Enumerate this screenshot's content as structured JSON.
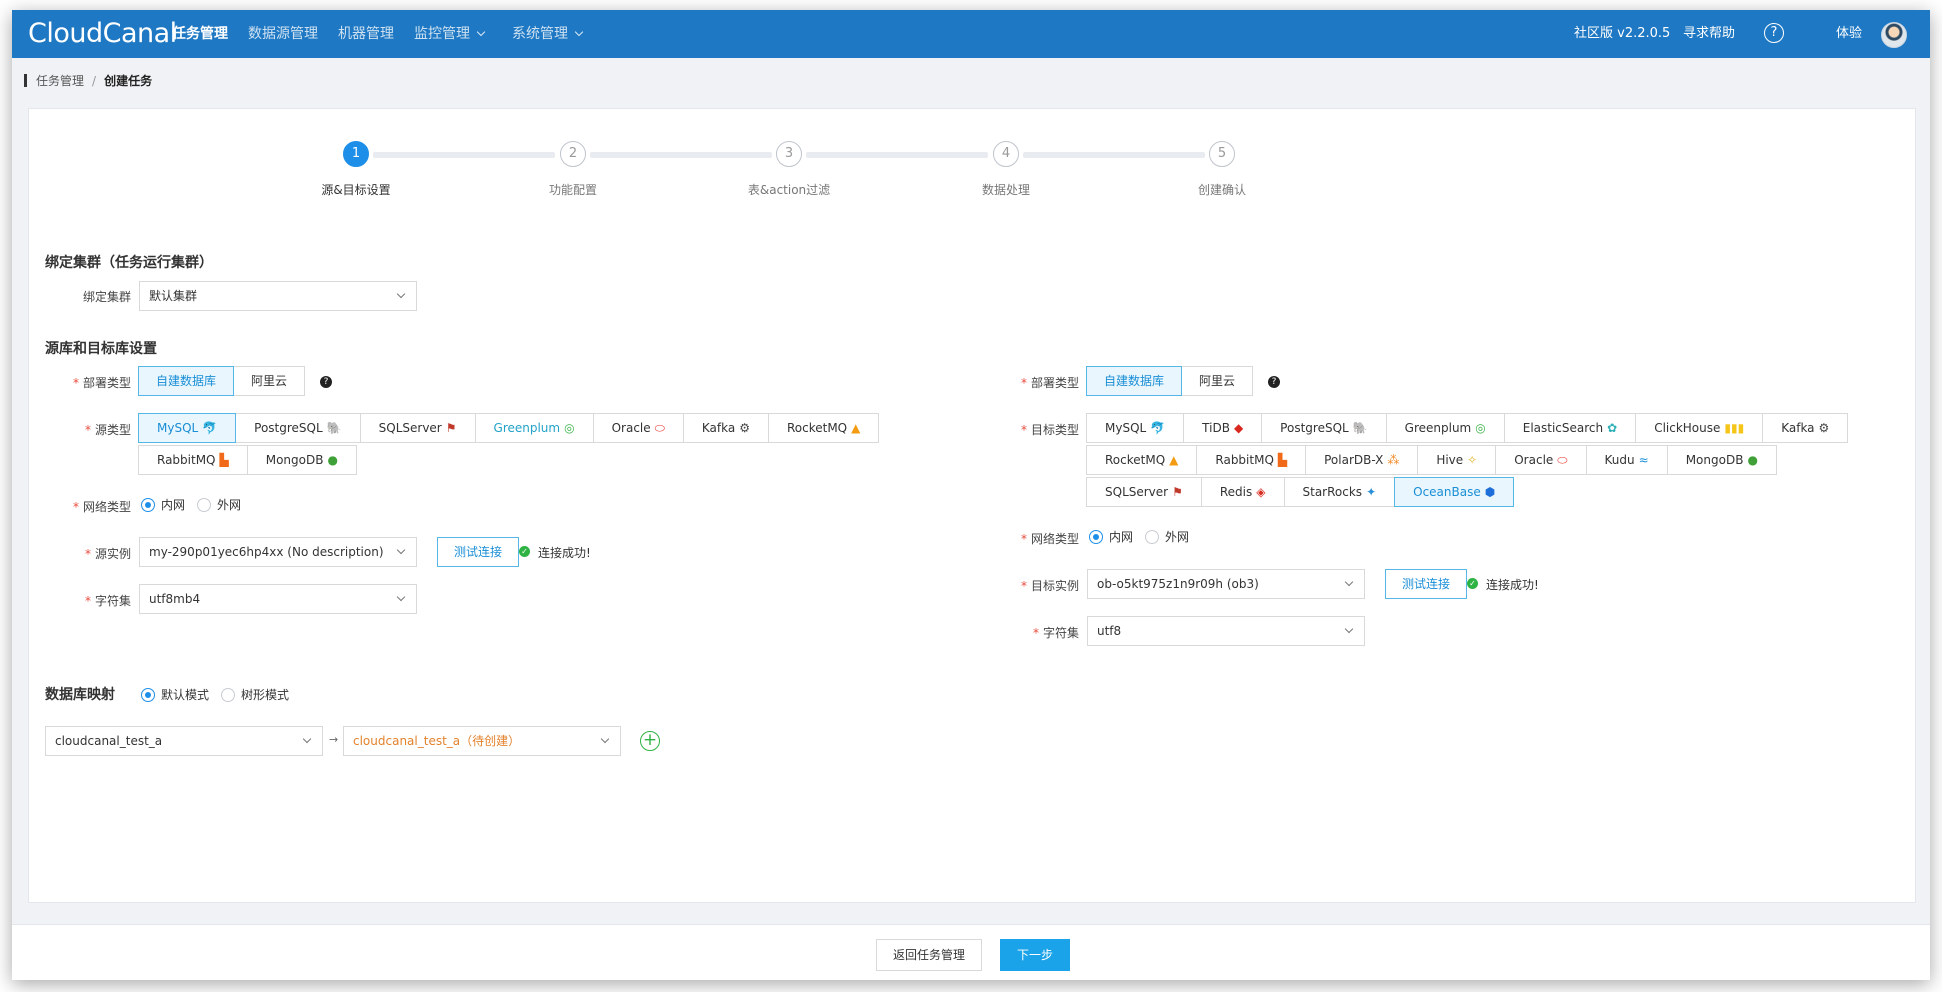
{
  "header": {
    "logo": "CloudCanal",
    "nav": [
      {
        "label": "任务管理",
        "active": true,
        "dropdown": false
      },
      {
        "label": "数据源管理",
        "active": false,
        "dropdown": false
      },
      {
        "label": "机器管理",
        "active": false,
        "dropdown": false
      },
      {
        "label": "监控管理",
        "active": false,
        "dropdown": true
      },
      {
        "label": "系统管理",
        "active": false,
        "dropdown": true
      }
    ],
    "version": "社区版 v2.2.0.5",
    "help_link": "寻求帮助",
    "help_icon": "?",
    "user_name": "体验"
  },
  "breadcrumb": {
    "parent": "任务管理",
    "separator": "/",
    "current": "创建任务"
  },
  "steps": [
    {
      "number": "1",
      "label": "源&目标设置",
      "active": true
    },
    {
      "number": "2",
      "label": "功能配置",
      "active": false
    },
    {
      "number": "3",
      "label": "表&action过滤",
      "active": false
    },
    {
      "number": "4",
      "label": "数据处理",
      "active": false
    },
    {
      "number": "5",
      "label": "创建确认",
      "active": false
    }
  ],
  "cluster": {
    "section_title": "绑定集群（任务运行集群）",
    "label": "绑定集群",
    "value": "默认集群"
  },
  "db_section_title": "源库和目标库设置",
  "required_mark": "*",
  "source": {
    "deploy_label": "部署类型",
    "deploy_options": [
      "自建数据库",
      "阿里云"
    ],
    "deploy_selected": "自建数据库",
    "db_type_label": "源类型",
    "db_types": [
      [
        "MySQL",
        "PostgreSQL",
        "SQLServer",
        "Greenplum",
        "Oracle",
        "Kafka",
        "RocketMQ"
      ],
      [
        "RabbitMQ",
        "MongoDB"
      ]
    ],
    "db_type_selected": "MySQL",
    "network_label": "网络类型",
    "network_options": [
      "内网",
      "外网"
    ],
    "network_selected": "内网",
    "instance_label": "源实例",
    "instance_value": "my-290p01yec6hp4xx (No description)",
    "test_button": "测试连接",
    "connect_status": "连接成功!",
    "charset_label": "字符集",
    "charset_value": "utf8mb4"
  },
  "target": {
    "deploy_label": "部署类型",
    "deploy_options": [
      "自建数据库",
      "阿里云"
    ],
    "deploy_selected": "自建数据库",
    "db_type_label": "目标类型",
    "db_types": [
      [
        "MySQL",
        "TiDB",
        "PostgreSQL",
        "Greenplum",
        "ElasticSearch",
        "ClickHouse",
        "Kafka"
      ],
      [
        "RocketMQ",
        "RabbitMQ",
        "PolarDB-X",
        "Hive",
        "Oracle",
        "Kudu",
        "MongoDB"
      ],
      [
        "SQLServer",
        "Redis",
        "StarRocks",
        "OceanBase"
      ]
    ],
    "db_type_selected": "OceanBase",
    "network_label": "网络类型",
    "network_options": [
      "内网",
      "外网"
    ],
    "network_selected": "内网",
    "instance_label": "目标实例",
    "instance_value": "ob-o5kt975z1n9r09h (ob3)",
    "test_button": "测试连接",
    "connect_status": "连接成功!",
    "charset_label": "字符集",
    "charset_value": "utf8"
  },
  "mapping": {
    "title": "数据库映射",
    "modes": [
      "默认模式",
      "树形模式"
    ],
    "mode_selected": "默认模式",
    "source_db": "cloudcanal_test_a",
    "arrow": "→",
    "target_db": "cloudcanal_test_a（待创建）",
    "add_icon": "+"
  },
  "footer": {
    "back_button": "返回任务管理",
    "next_button": "下一步"
  },
  "icons": {
    "MySQL": {
      "glyph": "🐬",
      "color": "#4479a1"
    },
    "PostgreSQL": {
      "glyph": "🐘",
      "color": "#336791"
    },
    "SQLServer": {
      "glyph": "⚑",
      "color": "#c0392b"
    },
    "Greenplum": {
      "glyph": "◎",
      "color": "#3bb34a"
    },
    "Oracle": {
      "glyph": "⬭",
      "color": "#e4332d"
    },
    "Kafka": {
      "glyph": "⚙",
      "color": "#444444"
    },
    "RocketMQ": {
      "glyph": "▲",
      "color": "#f39c12"
    },
    "RabbitMQ": {
      "glyph": "▙",
      "color": "#f06a1a"
    },
    "MongoDB": {
      "glyph": "●",
      "color": "#3fa037"
    },
    "TiDB": {
      "glyph": "◆",
      "color": "#d9281f"
    },
    "ElasticSearch": {
      "glyph": "✿",
      "color": "#2bb0b7"
    },
    "ClickHouse": {
      "glyph": "▮▮▮",
      "color": "#f5c518"
    },
    "PolarDB-X": {
      "glyph": "⁂",
      "color": "#f08c2a"
    },
    "Hive": {
      "glyph": "✧",
      "color": "#e0b52a"
    },
    "Kudu": {
      "glyph": "≈",
      "color": "#1a8ed6"
    },
    "Redis": {
      "glyph": "◈",
      "color": "#d82c20"
    },
    "StarRocks": {
      "glyph": "✦",
      "color": "#2a8fd6"
    },
    "OceanBase": {
      "glyph": "⬢",
      "color": "#1e6fd9"
    }
  }
}
